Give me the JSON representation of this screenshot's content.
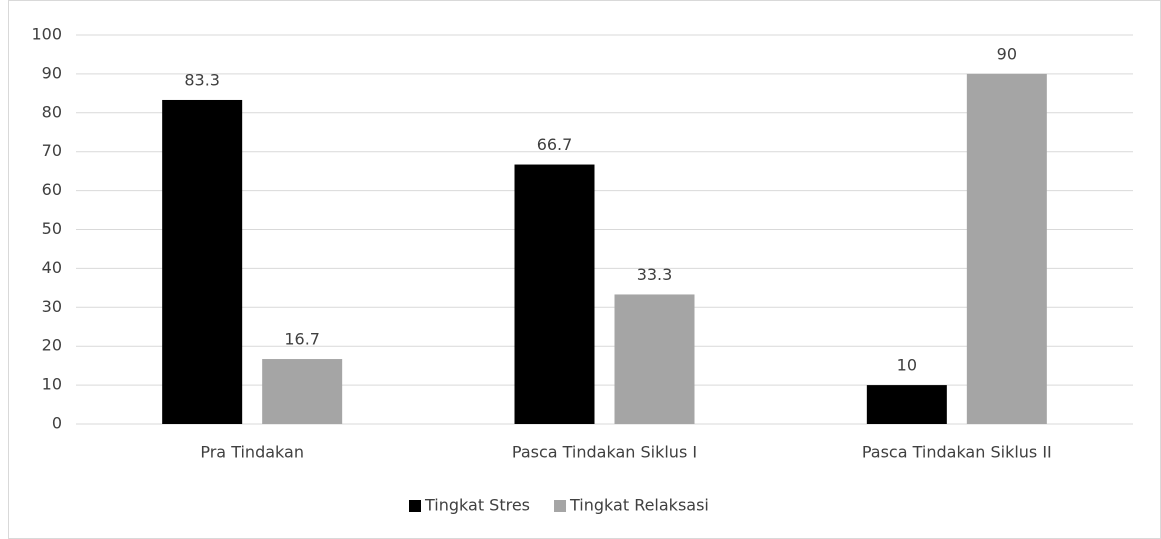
{
  "chart_data": {
    "type": "bar",
    "categories": [
      "Pra Tindakan",
      "Pasca Tindakan Siklus I",
      "Pasca Tindakan Siklus II"
    ],
    "series": [
      {
        "name": "Tingkat Stres",
        "color": "#000000",
        "values": [
          83.3,
          66.7,
          10
        ]
      },
      {
        "name": "Tingkat Relaksasi",
        "color": "#a5a5a5",
        "values": [
          16.7,
          33.3,
          90
        ]
      }
    ],
    "ylim": [
      0,
      100
    ],
    "yticks": [
      0,
      10,
      20,
      30,
      40,
      50,
      60,
      70,
      80,
      90,
      100
    ],
    "grid": true,
    "legend": "bottom"
  }
}
